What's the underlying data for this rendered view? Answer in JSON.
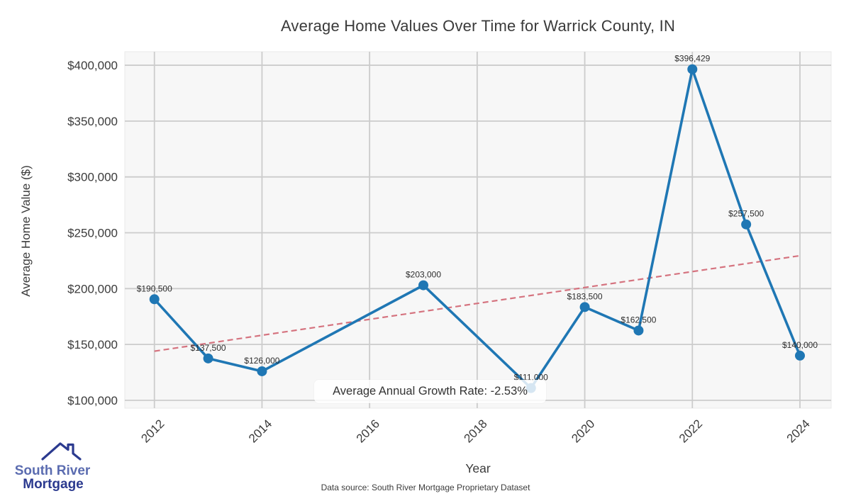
{
  "chart_data": {
    "type": "line",
    "title": "Average Home Values Over Time for Warrick County, IN",
    "xlabel": "Year",
    "ylabel": "Average Home Value ($)",
    "x": [
      2012,
      2013,
      2014,
      2017,
      2019,
      2020,
      2021,
      2022,
      2023,
      2024
    ],
    "values": [
      190500,
      137500,
      126000,
      203000,
      111000,
      183500,
      162500,
      396429,
      257500,
      140000
    ],
    "point_labels": [
      "$190,500",
      "$137,500",
      "$126,000",
      "$203,000",
      "$111,000",
      "$183,500",
      "$162,500",
      "$396,429",
      "$257,500",
      "$140,000"
    ],
    "xticks": [
      2012,
      2014,
      2016,
      2018,
      2020,
      2022,
      2024
    ],
    "xtick_labels": [
      "2012",
      "2014",
      "2016",
      "2018",
      "2020",
      "2022",
      "2024"
    ],
    "yticks": [
      100000,
      150000,
      200000,
      250000,
      300000,
      350000,
      400000
    ],
    "ytick_labels": [
      "$100,000",
      "$150,000",
      "$200,000",
      "$250,000",
      "$300,000",
      "$350,000",
      "$400,000"
    ],
    "xlim": [
      2011.45,
      2024.58
    ],
    "ylim": [
      93000,
      412100
    ],
    "grid": true,
    "legend": "none",
    "line_color": "#1f77b4",
    "marker_color": "#1f77b4",
    "grid_color": "#cccccc",
    "plot_bg": "#f7f7f7",
    "trend": {
      "x": [
        2012,
        2024
      ],
      "y": [
        144000,
        229500
      ],
      "color": "#d5737f",
      "style": "dashed"
    },
    "annotation": {
      "text": "Average Annual Growth Rate: -2.53%"
    }
  },
  "footer": {
    "source": "Data source: South River Mortgage Proprietary Dataset"
  },
  "logo": {
    "line1": "South River",
    "line2": "Mortgage",
    "accent_light": "#5b6cb0",
    "accent_dark": "#2b3a8f"
  }
}
